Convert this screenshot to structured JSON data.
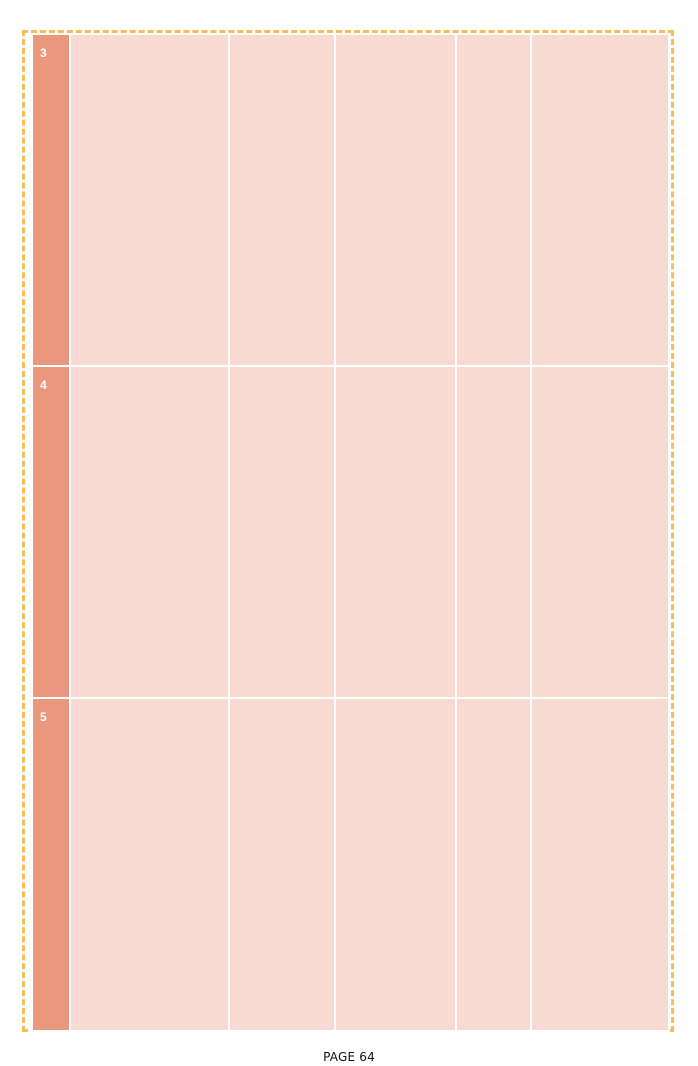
{
  "rows": [
    {
      "number": "3"
    },
    {
      "number": "4"
    },
    {
      "number": "5"
    }
  ],
  "footer": {
    "page_label": "PAGE 64"
  },
  "colors": {
    "frame_border": "#f7bd57",
    "row_number_fill": "#e9977d",
    "cell_fill": "#f7dbd3",
    "grid_lines": "#ffffff"
  }
}
